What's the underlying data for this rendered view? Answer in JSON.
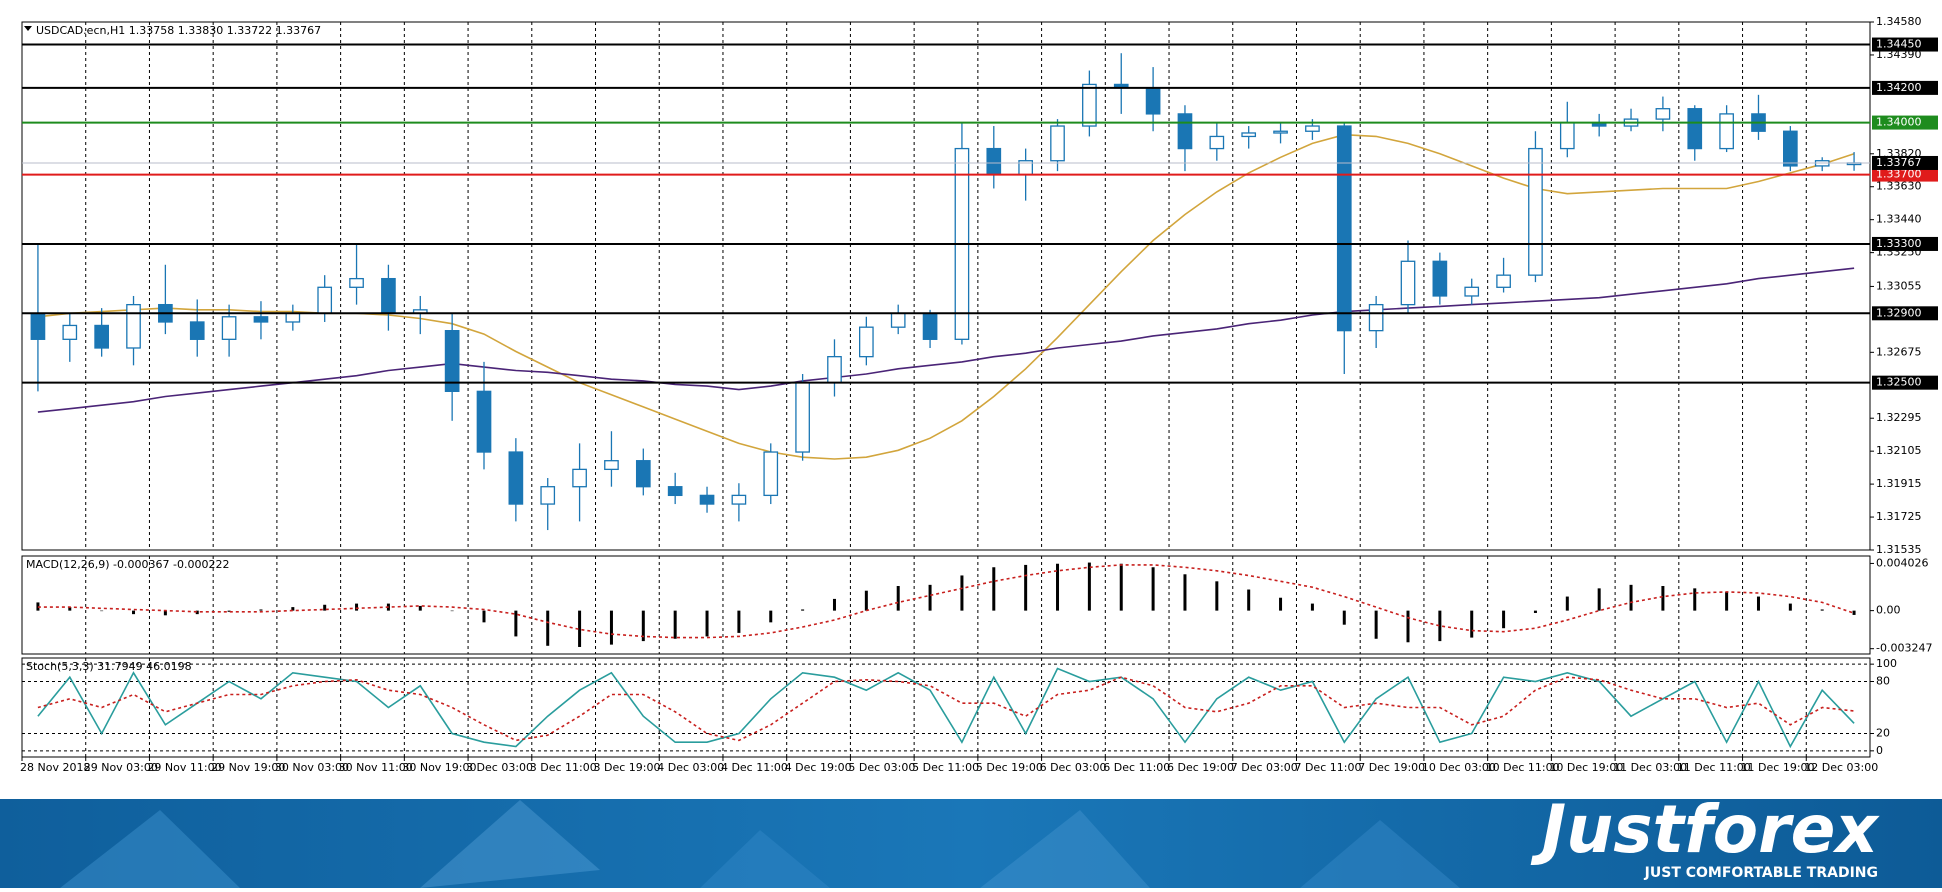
{
  "chart_data": [
    {
      "type": "candlestick",
      "title": "USDCAD.ecn,H1  1.33758 1.33830 1.33722 1.33767",
      "categories": [
        "28 Nov 2018",
        null,
        "29 Nov 03:00",
        null,
        "29 Nov 11:00",
        null,
        "29 Nov 19:00",
        null,
        "30 Nov 03:00",
        null,
        "30 Nov 11:00",
        null,
        "30 Nov 19:00",
        null,
        "3 Dec 03:00",
        null,
        "3 Dec 11:00",
        null,
        "3 Dec 19:00",
        null,
        "4 Dec 03:00",
        null,
        "4 Dec 11:00",
        null,
        "4 Dec 19:00",
        null,
        "5 Dec 03:00",
        null,
        "5 Dec 11:00",
        null,
        "5 Dec 19:00",
        null,
        "6 Dec 03:00",
        null,
        "6 Dec 11:00",
        null,
        "6 Dec 19:00",
        null,
        "7 Dec 03:00",
        null,
        "7 Dec 11:00",
        null,
        "7 Dec 19:00",
        null,
        "10 Dec 03:00",
        null,
        "10 Dec 11:00",
        null,
        "10 Dec 19:00",
        null,
        "11 Dec 03:00",
        null,
        "11 Dec 11:00",
        null,
        "11 Dec 19:00",
        null,
        "12 Dec 03:00",
        null
      ],
      "open": [
        1.329,
        1.3275,
        1.3283,
        1.327,
        1.3295,
        1.3285,
        1.3275,
        1.3288,
        1.3285,
        1.329,
        1.3305,
        1.331,
        1.329,
        1.328,
        1.3245,
        1.321,
        1.318,
        1.319,
        1.32,
        1.3205,
        1.319,
        1.3185,
        1.318,
        1.3185,
        1.321,
        1.325,
        1.3265,
        1.3282,
        1.329,
        1.3275,
        1.3385,
        1.337,
        1.3378,
        1.3398,
        1.3422,
        1.342,
        1.3405,
        1.3385,
        1.3392,
        1.3394,
        1.3395,
        1.3398,
        1.328,
        1.3295,
        1.332,
        1.33,
        1.3305,
        1.3312,
        1.3385,
        1.34,
        1.3398,
        1.3402,
        1.3408,
        1.3385,
        1.3405,
        1.3395,
        1.3375,
        1.33758
      ],
      "high": [
        1.333,
        1.329,
        1.3293,
        1.33,
        1.3318,
        1.3298,
        1.3295,
        1.3297,
        1.3295,
        1.3312,
        1.333,
        1.3318,
        1.33,
        1.329,
        1.3262,
        1.3218,
        1.3195,
        1.3215,
        1.3222,
        1.3212,
        1.3198,
        1.319,
        1.3192,
        1.3215,
        1.3255,
        1.3275,
        1.3288,
        1.3295,
        1.3292,
        1.34,
        1.3398,
        1.3385,
        1.3402,
        1.343,
        1.344,
        1.3432,
        1.341,
        1.34,
        1.3398,
        1.34,
        1.3402,
        1.34,
        1.33,
        1.3332,
        1.3325,
        1.331,
        1.3322,
        1.3395,
        1.3412,
        1.3405,
        1.3408,
        1.3415,
        1.341,
        1.341,
        1.3416,
        1.3398,
        1.338,
        1.3383
      ],
      "low": [
        1.3245,
        1.3262,
        1.3265,
        1.326,
        1.3278,
        1.3265,
        1.3265,
        1.3275,
        1.328,
        1.3285,
        1.3295,
        1.328,
        1.3278,
        1.3228,
        1.32,
        1.317,
        1.3165,
        1.317,
        1.319,
        1.3185,
        1.318,
        1.3175,
        1.317,
        1.318,
        1.3205,
        1.3242,
        1.326,
        1.3278,
        1.327,
        1.3272,
        1.3362,
        1.3355,
        1.3372,
        1.3392,
        1.3405,
        1.3395,
        1.3372,
        1.3378,
        1.3385,
        1.3388,
        1.339,
        1.3255,
        1.327,
        1.329,
        1.3295,
        1.3295,
        1.3302,
        1.3308,
        1.338,
        1.3392,
        1.3395,
        1.3395,
        1.3378,
        1.3383,
        1.339,
        1.3372,
        1.3372,
        1.33722
      ],
      "close": [
        1.3275,
        1.3283,
        1.327,
        1.3295,
        1.3285,
        1.3275,
        1.3288,
        1.3285,
        1.329,
        1.3305,
        1.331,
        1.329,
        1.3292,
        1.3245,
        1.321,
        1.318,
        1.319,
        1.32,
        1.3205,
        1.319,
        1.3185,
        1.318,
        1.3185,
        1.321,
        1.325,
        1.3265,
        1.3282,
        1.329,
        1.3275,
        1.3385,
        1.337,
        1.3378,
        1.3398,
        1.3422,
        1.342,
        1.3405,
        1.3385,
        1.3392,
        1.3394,
        1.3395,
        1.3398,
        1.328,
        1.3295,
        1.332,
        1.33,
        1.3305,
        1.3312,
        1.3385,
        1.34,
        1.3398,
        1.3402,
        1.3408,
        1.3385,
        1.3405,
        1.3395,
        1.3375,
        1.3378,
        1.33767
      ],
      "up_color": "#ffffff",
      "down_color": "#1a76b4",
      "lines": [
        {
          "color": "#d2a53c",
          "values": [
            1.3288,
            1.329,
            1.3291,
            1.3292,
            1.3293,
            1.3292,
            1.3292,
            1.3291,
            1.3291,
            1.329,
            1.329,
            1.3289,
            1.3287,
            1.3284,
            1.3278,
            1.3268,
            1.3259,
            1.325,
            1.3243,
            1.3236,
            1.3229,
            1.3222,
            1.3215,
            1.321,
            1.3207,
            1.3206,
            1.3207,
            1.3211,
            1.3218,
            1.3228,
            1.3242,
            1.3258,
            1.3276,
            1.3295,
            1.3314,
            1.3332,
            1.3347,
            1.336,
            1.3371,
            1.338,
            1.3388,
            1.3393,
            1.3392,
            1.3388,
            1.3382,
            1.3375,
            1.3368,
            1.3362,
            1.3359,
            1.336,
            1.3361,
            1.3362,
            1.3362,
            1.3362,
            1.3366,
            1.3371,
            1.3376,
            1.3382
          ]
        },
        {
          "color": "#4a2477",
          "values": [
            1.3233,
            1.3235,
            1.3237,
            1.3239,
            1.3242,
            1.3244,
            1.3246,
            1.3248,
            1.325,
            1.3252,
            1.3254,
            1.3257,
            1.3259,
            1.3261,
            1.3259,
            1.3257,
            1.3256,
            1.3254,
            1.3252,
            1.3251,
            1.3249,
            1.3248,
            1.3246,
            1.3248,
            1.3251,
            1.3253,
            1.3255,
            1.3258,
            1.326,
            1.3262,
            1.3265,
            1.3267,
            1.327,
            1.3272,
            1.3274,
            1.3277,
            1.3279,
            1.3281,
            1.3284,
            1.3286,
            1.3289,
            1.3291,
            1.3292,
            1.3293,
            1.3294,
            1.3295,
            1.3296,
            1.3297,
            1.3298,
            1.3299,
            1.3301,
            1.3303,
            1.3305,
            1.3307,
            1.331,
            1.3312,
            1.3314,
            1.3316
          ]
        }
      ],
      "levels": [
        {
          "value": 1.3445,
          "label": "1.34450",
          "color": "#000000"
        },
        {
          "value": 1.342,
          "label": "1.34200",
          "color": "#000000"
        },
        {
          "value": 1.34,
          "label": "1.34000",
          "color": "#1e8c1e"
        },
        {
          "value": 1.337,
          "label": "1.33700",
          "color": "#e01b1b"
        },
        {
          "value": 1.333,
          "label": "1.33300",
          "color": "#000000"
        },
        {
          "value": 1.329,
          "label": "1.32900",
          "color": "#000000"
        },
        {
          "value": 1.325,
          "label": "1.32500",
          "color": "#000000"
        }
      ],
      "last_price": 1.33767,
      "last_color": "#b8bccb",
      "ylim": [
        1.31535,
        1.3458
      ],
      "yticks": [
        {
          "value": 1.3458,
          "label": "1.34580"
        },
        {
          "value": 1.3439,
          "label": "1.34390"
        },
        {
          "value": 1.3382,
          "label": "1.33820"
        },
        {
          "value": 1.3363,
          "label": "1.33630"
        },
        {
          "value": 1.3344,
          "label": "1.33440"
        },
        {
          "value": 1.3325,
          "label": "1.33250"
        },
        1.33055,
        1.32675,
        1.32295,
        1.32105,
        1.31915,
        1.31725,
        1.31535
      ],
      "grid": "x"
    },
    {
      "type": "bar",
      "title": "MACD(12,26,9) -0.000367 -0.000222",
      "color": "#000000",
      "values": [
        0.0007,
        0.0003,
        0.0,
        -0.0003,
        -0.0004,
        -0.0003,
        -0.0001,
        0.0001,
        0.0003,
        0.0005,
        0.0006,
        0.0006,
        0.0004,
        0.0,
        -0.001,
        -0.0022,
        -0.003,
        -0.0031,
        -0.0029,
        -0.0026,
        -0.0024,
        -0.0022,
        -0.0019,
        -0.001,
        0.0001,
        0.001,
        0.0017,
        0.0021,
        0.0022,
        0.003,
        0.0037,
        0.0039,
        0.004,
        0.0041,
        0.004,
        0.0037,
        0.0031,
        0.0025,
        0.0018,
        0.0011,
        0.0006,
        -0.0012,
        -0.0024,
        -0.0027,
        -0.0026,
        -0.0023,
        -0.0015,
        -0.0002,
        0.0012,
        0.0019,
        0.0022,
        0.0021,
        0.0019,
        0.0016,
        0.0012,
        0.0006,
        0.0001,
        -0.000367
      ],
      "signal": {
        "color": "#c8201e",
        "values": [
          0.0003,
          0.0003,
          0.0002,
          0.0001,
          0.0,
          -0.0001,
          -0.0001,
          -0.0001,
          0.0,
          0.0001,
          0.0002,
          0.0003,
          0.0004,
          0.0003,
          0.0001,
          -0.0003,
          -0.001,
          -0.0016,
          -0.002,
          -0.0022,
          -0.0023,
          -0.0023,
          -0.0022,
          -0.0019,
          -0.0014,
          -0.0008,
          0.0,
          0.0007,
          0.0013,
          0.0019,
          0.0025,
          0.003,
          0.0034,
          0.0037,
          0.0039,
          0.0039,
          0.0037,
          0.0034,
          0.003,
          0.0025,
          0.002,
          0.0012,
          0.0003,
          -0.0006,
          -0.0013,
          -0.0017,
          -0.0018,
          -0.0015,
          -0.0008,
          0.0,
          0.0007,
          0.0012,
          0.0015,
          0.0016,
          0.0015,
          0.0012,
          0.0007,
          -0.000222
        ]
      },
      "ylim": [
        -0.0037,
        0.00466
      ],
      "yticks": [
        0.004026,
        {
          "value": 0,
          "label": "0.00"
        },
        -0.003247
      ],
      "grid": "x"
    },
    {
      "type": "line",
      "title": "Stoch(5,3,3) 31.7949 46.0198",
      "series": [
        {
          "color": "#2a9d9d",
          "values": [
            40,
            85,
            20,
            90,
            30,
            55,
            80,
            60,
            90,
            85,
            80,
            50,
            75,
            20,
            10,
            5,
            40,
            70,
            90,
            40,
            10,
            10,
            20,
            60,
            90,
            85,
            70,
            90,
            70,
            10,
            85,
            20,
            95,
            80,
            85,
            60,
            10,
            60,
            85,
            70,
            80,
            10,
            60,
            85,
            10,
            20,
            85,
            80,
            90,
            80,
            40,
            60,
            80,
            10,
            80,
            5,
            70,
            31.7949
          ]
        },
        {
          "color": "#c8201e",
          "dash": true,
          "values": [
            50,
            60,
            50,
            65,
            45,
            55,
            65,
            65,
            75,
            80,
            82,
            70,
            65,
            50,
            30,
            12,
            18,
            40,
            65,
            65,
            45,
            20,
            12,
            30,
            55,
            80,
            82,
            80,
            75,
            55,
            55,
            40,
            65,
            70,
            85,
            75,
            50,
            45,
            55,
            75,
            75,
            50,
            55,
            50,
            50,
            30,
            40,
            70,
            85,
            82,
            70,
            60,
            60,
            50,
            55,
            30,
            50,
            46.0198
          ]
        }
      ],
      "ylim": [
        -7.1,
        107.1
      ],
      "yticks": [
        100,
        80,
        20,
        0
      ],
      "grid": "xy"
    }
  ],
  "footer": {
    "brand": "Justforex",
    "tagline": "JUST COMFORTABLE TRADING"
  }
}
